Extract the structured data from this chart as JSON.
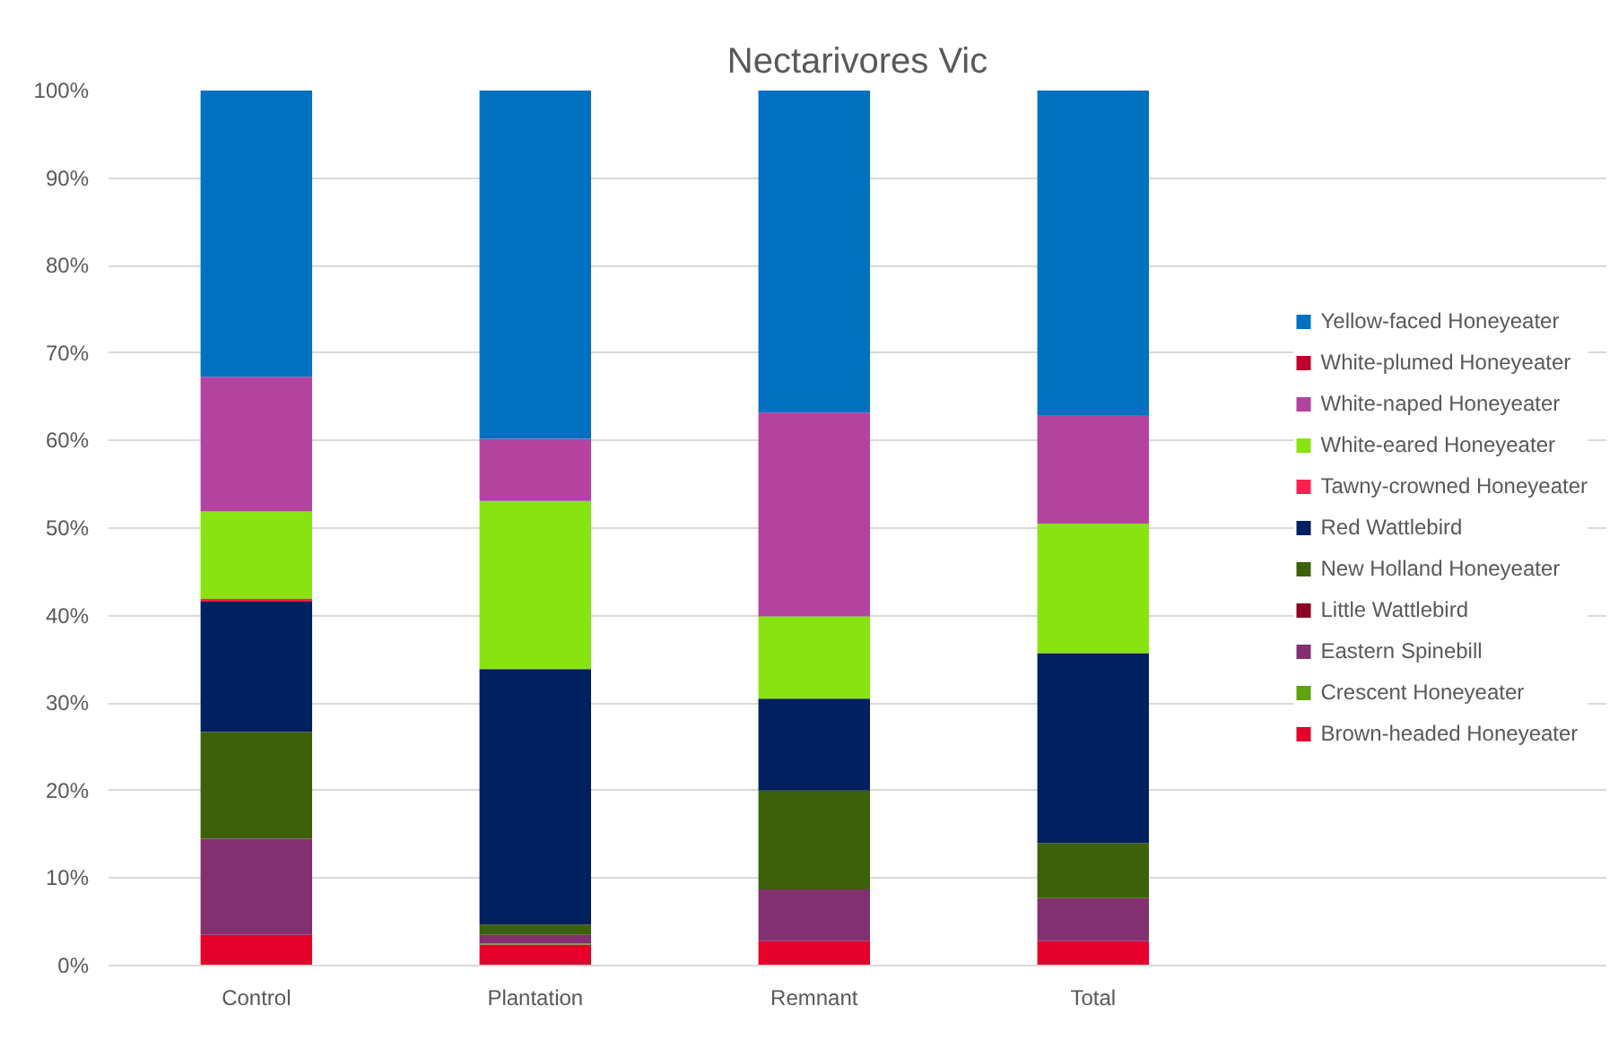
{
  "chart_data": {
    "type": "bar",
    "title": "Nectarivores Vic",
    "stacked": true,
    "categories": [
      "Control",
      "Plantation",
      "Remnant",
      "Total"
    ],
    "series": [
      {
        "name": "Brown-headed Honeyeater",
        "color": "#e4002b",
        "values": [
          3.5,
          2.4,
          2.8,
          2.8
        ]
      },
      {
        "name": "Crescent Honeyeater",
        "color": "#5fa40e",
        "values": [
          0,
          0.1,
          0,
          0
        ]
      },
      {
        "name": "Eastern Spinebill",
        "color": "#833071",
        "values": [
          11,
          1.0,
          5.9,
          4.9
        ]
      },
      {
        "name": "Little Wattlebird",
        "color": "#8b0023",
        "values": [
          0,
          0,
          0,
          0
        ]
      },
      {
        "name": "New Holland Honeyeater",
        "color": "#3c6108",
        "values": [
          12.2,
          1.2,
          11.3,
          6.3
        ]
      },
      {
        "name": "Red Wattlebird",
        "color": "#00205f",
        "values": [
          14.9,
          29.2,
          10.5,
          21.7
        ]
      },
      {
        "name": "Tawny-crowned Honeyeater",
        "color": "#ff1e4e",
        "values": [
          0.3,
          0,
          0,
          0
        ]
      },
      {
        "name": "White-eared Honeyeater",
        "color": "#88e411",
        "values": [
          10,
          19.2,
          9.4,
          14.8
        ]
      },
      {
        "name": "White-naped Honeyeater",
        "color": "#b443a0",
        "values": [
          15.4,
          7.1,
          23.3,
          12.4
        ]
      },
      {
        "name": "White-plumed Honeyeater",
        "color": "#c0002a",
        "values": [
          0,
          0,
          0,
          0
        ]
      },
      {
        "name": "Yellow-faced Honeyeater",
        "color": "#0070c0",
        "values": [
          32.7,
          39.8,
          36.8,
          37.1
        ]
      }
    ],
    "ylim": [
      0,
      100
    ],
    "yticks": [
      {
        "value": 0,
        "label": "0%"
      },
      {
        "value": 10,
        "label": "10%"
      },
      {
        "value": 20,
        "label": "20%"
      },
      {
        "value": 30,
        "label": "30%"
      },
      {
        "value": 40,
        "label": "40%"
      },
      {
        "value": 50,
        "label": "50%"
      },
      {
        "value": 60,
        "label": "60%"
      },
      {
        "value": 70,
        "label": "70%"
      },
      {
        "value": 80,
        "label": "80%"
      },
      {
        "value": 90,
        "label": "90%"
      },
      {
        "value": 100,
        "label": "100%"
      }
    ],
    "grid": "y",
    "legend": "right"
  }
}
